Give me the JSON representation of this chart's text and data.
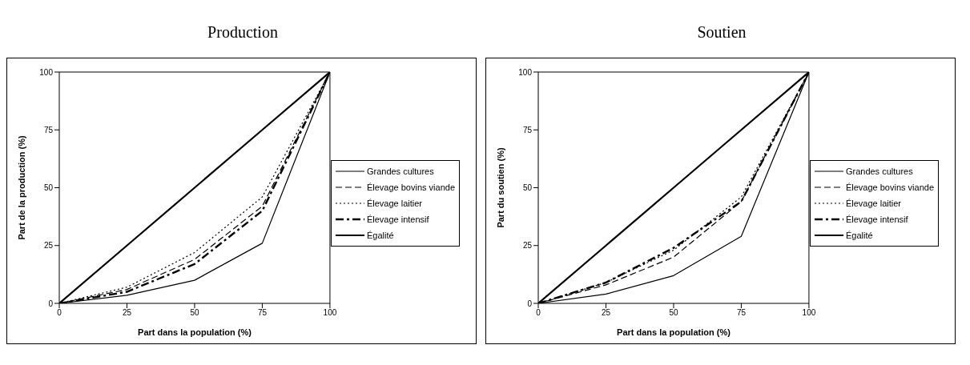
{
  "chart_data": [
    {
      "type": "line",
      "title": "Production",
      "xlabel": "Part dans la population (%)",
      "ylabel": "Part de la production (%)",
      "x": [
        0,
        25,
        50,
        75,
        100
      ],
      "xlim": [
        0,
        100
      ],
      "xticks": [
        0,
        25,
        50,
        75,
        100
      ],
      "ylim": [
        0,
        100
      ],
      "yticks": [
        0,
        25,
        50,
        75,
        100
      ],
      "grid": false,
      "legend": "right",
      "marker": "none",
      "series": [
        {
          "name": "Grandes cultures",
          "color": "#000000",
          "line_style": "solid",
          "values": [
            0,
            3.5,
            10,
            26,
            100
          ]
        },
        {
          "name": "Élevage bovins viande",
          "color": "#000000",
          "line_style": "dashed",
          "values": [
            0,
            6,
            19,
            42,
            100
          ]
        },
        {
          "name": "Élevage laitier",
          "color": "#000000",
          "line_style": "dotted",
          "values": [
            0,
            7,
            22,
            46,
            100
          ]
        },
        {
          "name": "Élevage intensif",
          "color": "#000000",
          "line_style": "dashdot",
          "values": [
            0,
            5,
            17,
            40,
            100
          ]
        },
        {
          "name": "Égalité",
          "color": "#000000",
          "line_style": "solid",
          "values": [
            0,
            25,
            50,
            75,
            100
          ]
        }
      ]
    },
    {
      "type": "line",
      "title": "Soutien",
      "xlabel": "Part dans la population (%)",
      "ylabel": "Part du soutien (%)",
      "x": [
        0,
        25,
        50,
        75,
        100
      ],
      "xlim": [
        0,
        100
      ],
      "xticks": [
        0,
        25,
        50,
        75,
        100
      ],
      "ylim": [
        0,
        100
      ],
      "yticks": [
        0,
        25,
        50,
        75,
        100
      ],
      "grid": false,
      "legend": "right",
      "marker": "none",
      "series": [
        {
          "name": "Grandes cultures",
          "color": "#000000",
          "line_style": "solid",
          "values": [
            0,
            4,
            12,
            29,
            100
          ]
        },
        {
          "name": "Élevage bovins viande",
          "color": "#000000",
          "line_style": "dashed",
          "values": [
            0,
            8,
            20,
            44,
            100
          ]
        },
        {
          "name": "Élevage laitier",
          "color": "#000000",
          "line_style": "dotted",
          "values": [
            0,
            9,
            23,
            46,
            100
          ]
        },
        {
          "name": "Élevage intensif",
          "color": "#000000",
          "line_style": "dashdot",
          "values": [
            0,
            9,
            24,
            44,
            100
          ]
        },
        {
          "name": "Égalité",
          "color": "#000000",
          "line_style": "solid",
          "values": [
            0,
            25,
            50,
            75,
            100
          ]
        }
      ]
    }
  ]
}
